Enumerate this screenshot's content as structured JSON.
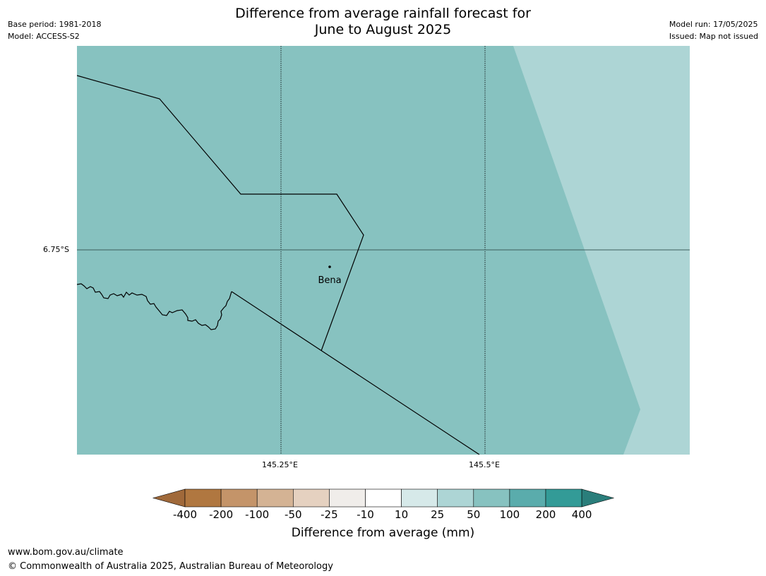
{
  "title_line1": "Difference from average rainfall forecast for",
  "title_line2": "June to August 2025",
  "meta_left": {
    "base_period": "Base period: 1981-2018",
    "model": "Model: ACCESS-S2"
  },
  "meta_right": {
    "model_run": "Model run: 17/05/2025",
    "issued": "Issued: Map not issued"
  },
  "map": {
    "lat_label": "6.75°S",
    "lon_labels": [
      "145.25°E",
      "145.5°E"
    ],
    "place_name": "Bena",
    "fill_colors": {
      "main": "#87c2c0",
      "light": "#add5d5"
    },
    "main_category": "50 to 100 mm",
    "light_category": "25 to 50 mm"
  },
  "colorbar": {
    "title": "Difference from average (mm)",
    "labels": [
      "-400",
      "-200",
      "-100",
      "-50",
      "-25",
      "-10",
      "10",
      "25",
      "50",
      "100",
      "200",
      "400"
    ],
    "colors": [
      "#a0693a",
      "#b07740",
      "#c49469",
      "#d4b394",
      "#e5d1c0",
      "#f0edea",
      "#ffffff",
      "#d6e9e9",
      "#add5d5",
      "#87c2c0",
      "#5aacac",
      "#339b97",
      "#2a7e7b"
    ]
  },
  "footer": {
    "url": "www.bom.gov.au/climate",
    "copyright": "© Commonwealth of Australia 2025, Australian Bureau of Meteorology"
  }
}
